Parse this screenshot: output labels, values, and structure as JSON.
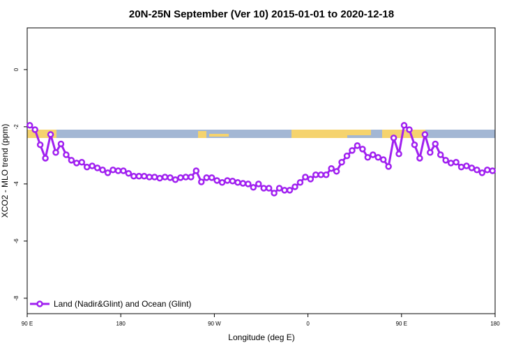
{
  "chart_data": {
    "type": "line",
    "title": "20N-25N September (Ver 10)   2015-01-01 to 2020-12-18",
    "x_label": "Longitude (deg E)",
    "y_label": "XCO2 - MLO trend (ppm)",
    "xlim": [
      90,
      540
    ],
    "ylim": [
      -8.54,
      1.46
    ],
    "xticks": [
      {
        "value": 90,
        "label": "90 E"
      },
      {
        "value": 180,
        "label": "180"
      },
      {
        "value": 270,
        "label": "90 W"
      },
      {
        "value": 360,
        "label": "0"
      },
      {
        "value": 450,
        "label": "90 E"
      },
      {
        "value": 540,
        "label": "180"
      }
    ],
    "yticks": [
      0,
      -2,
      -4,
      -6,
      -8
    ],
    "legend": "bottom-left",
    "x": [
      92.5,
      97.5,
      102.5,
      107.5,
      112.5,
      117.5,
      122.5,
      127.5,
      132.5,
      137.5,
      142.5,
      147.5,
      152.5,
      157.5,
      162.5,
      167.5,
      172.5,
      177.5,
      182.5,
      187.5,
      192.5,
      197.5,
      202.5,
      207.5,
      212.5,
      217.5,
      222.5,
      227.5,
      232.5,
      237.5,
      242.5,
      247.5,
      252.5,
      257.5,
      262.5,
      267.5,
      272.5,
      277.5,
      282.5,
      287.5,
      292.5,
      297.5,
      302.5,
      307.5,
      312.5,
      317.5,
      322.5,
      327.5,
      332.5,
      337.5,
      342.5,
      347.5,
      352.5,
      357.5,
      362.5,
      367.5,
      372.5,
      377.5,
      382.5,
      387.5,
      392.5,
      397.5,
      402.5,
      407.5,
      412.5,
      417.5,
      422.5,
      427.5,
      432.5,
      437.5,
      442.5,
      447.5,
      452.5,
      457.5,
      462.5,
      467.5,
      472.5,
      477.5,
      482.5,
      487.5,
      492.5,
      497.5,
      502.5,
      507.5,
      512.5,
      517.5,
      522.5,
      527.5,
      532.5,
      537.5
    ],
    "series": [
      {
        "name": "Land (Nadir&Glint) and Ocean (Glint)",
        "color": "#a020f0",
        "values": [
          -1.95,
          -2.1,
          -2.63,
          -3.1,
          -2.27,
          -2.9,
          -2.6,
          -2.98,
          -3.17,
          -3.27,
          -3.24,
          -3.41,
          -3.37,
          -3.44,
          -3.51,
          -3.61,
          -3.51,
          -3.54,
          -3.54,
          -3.63,
          -3.73,
          -3.73,
          -3.73,
          -3.76,
          -3.76,
          -3.8,
          -3.76,
          -3.78,
          -3.85,
          -3.78,
          -3.76,
          -3.76,
          -3.54,
          -3.93,
          -3.78,
          -3.78,
          -3.88,
          -3.95,
          -3.88,
          -3.9,
          -3.95,
          -3.98,
          -4.0,
          -4.12,
          -4.0,
          -4.15,
          -4.15,
          -4.32,
          -4.15,
          -4.22,
          -4.22,
          -4.1,
          -3.95,
          -3.76,
          -3.83,
          -3.68,
          -3.68,
          -3.68,
          -3.46,
          -3.56,
          -3.24,
          -3.02,
          -2.83,
          -2.66,
          -2.78,
          -3.07,
          -2.98,
          -3.07,
          -3.15,
          -3.39,
          -2.39,
          -2.95,
          -1.95,
          -2.1,
          -2.63,
          -3.1,
          -2.27,
          -2.9,
          -2.6,
          -2.98,
          -3.17,
          -3.27,
          -3.24,
          -3.41,
          -3.37,
          -3.44,
          -3.51,
          -3.61,
          -3.51,
          -3.54
        ]
      }
    ]
  }
}
